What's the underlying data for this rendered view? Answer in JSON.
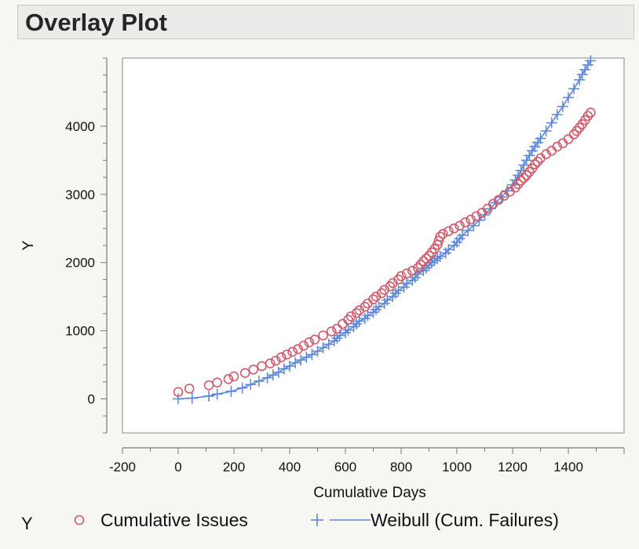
{
  "panel": {
    "title": "Overlay Plot"
  },
  "chart_data": {
    "type": "scatter",
    "xlabel": "Cumulative Days",
    "ylabel": "Y",
    "xlim": [
      -200,
      1600
    ],
    "ylim": [
      -500,
      5000
    ],
    "x_ticks": [
      -200,
      0,
      200,
      400,
      600,
      800,
      1000,
      1200,
      1400
    ],
    "y_ticks": [
      0,
      1000,
      2000,
      3000,
      4000
    ],
    "grid": false,
    "legend_placement": "bottom",
    "legend_title": "Y",
    "series": [
      {
        "name": "Cumulative Issues",
        "marker": "circle",
        "color": "#d05a6a",
        "points": [
          [
            0,
            100
          ],
          [
            40,
            150
          ],
          [
            110,
            200
          ],
          [
            140,
            240
          ],
          [
            180,
            290
          ],
          [
            200,
            330
          ],
          [
            240,
            380
          ],
          [
            270,
            430
          ],
          [
            300,
            480
          ],
          [
            330,
            520
          ],
          [
            350,
            560
          ],
          [
            370,
            610
          ],
          [
            390,
            650
          ],
          [
            410,
            690
          ],
          [
            430,
            730
          ],
          [
            450,
            780
          ],
          [
            470,
            830
          ],
          [
            490,
            870
          ],
          [
            520,
            930
          ],
          [
            550,
            990
          ],
          [
            570,
            1030
          ],
          [
            590,
            1100
          ],
          [
            610,
            1160
          ],
          [
            620,
            1210
          ],
          [
            640,
            1260
          ],
          [
            650,
            1300
          ],
          [
            670,
            1350
          ],
          [
            680,
            1400
          ],
          [
            700,
            1460
          ],
          [
            710,
            1500
          ],
          [
            730,
            1550
          ],
          [
            740,
            1600
          ],
          [
            760,
            1650
          ],
          [
            770,
            1700
          ],
          [
            790,
            1750
          ],
          [
            800,
            1800
          ],
          [
            820,
            1840
          ],
          [
            840,
            1880
          ],
          [
            860,
            1920
          ],
          [
            870,
            1970
          ],
          [
            880,
            2020
          ],
          [
            890,
            2060
          ],
          [
            900,
            2100
          ],
          [
            910,
            2150
          ],
          [
            920,
            2200
          ],
          [
            930,
            2260
          ],
          [
            935,
            2320
          ],
          [
            940,
            2380
          ],
          [
            950,
            2420
          ],
          [
            970,
            2460
          ],
          [
            990,
            2500
          ],
          [
            1010,
            2540
          ],
          [
            1030,
            2590
          ],
          [
            1050,
            2630
          ],
          [
            1070,
            2680
          ],
          [
            1090,
            2730
          ],
          [
            1110,
            2790
          ],
          [
            1130,
            2860
          ],
          [
            1150,
            2920
          ],
          [
            1170,
            2980
          ],
          [
            1190,
            3040
          ],
          [
            1210,
            3100
          ],
          [
            1220,
            3150
          ],
          [
            1230,
            3200
          ],
          [
            1240,
            3240
          ],
          [
            1250,
            3280
          ],
          [
            1260,
            3330
          ],
          [
            1270,
            3380
          ],
          [
            1280,
            3440
          ],
          [
            1290,
            3480
          ],
          [
            1300,
            3530
          ],
          [
            1320,
            3590
          ],
          [
            1340,
            3640
          ],
          [
            1360,
            3700
          ],
          [
            1380,
            3750
          ],
          [
            1400,
            3810
          ],
          [
            1420,
            3880
          ],
          [
            1430,
            3930
          ],
          [
            1440,
            3980
          ],
          [
            1450,
            4030
          ],
          [
            1460,
            4090
          ],
          [
            1470,
            4150
          ],
          [
            1480,
            4200
          ]
        ]
      },
      {
        "name": "Weibull (Cum. Failures)",
        "marker": "plus",
        "line": true,
        "color": "#5a86d6",
        "points": [
          [
            0,
            0
          ],
          [
            50,
            10
          ],
          [
            110,
            40
          ],
          [
            140,
            70
          ],
          [
            190,
            110
          ],
          [
            230,
            160
          ],
          [
            260,
            210
          ],
          [
            290,
            260
          ],
          [
            320,
            310
          ],
          [
            340,
            350
          ],
          [
            360,
            390
          ],
          [
            380,
            440
          ],
          [
            400,
            480
          ],
          [
            420,
            530
          ],
          [
            440,
            570
          ],
          [
            460,
            610
          ],
          [
            480,
            650
          ],
          [
            500,
            700
          ],
          [
            520,
            750
          ],
          [
            540,
            800
          ],
          [
            560,
            850
          ],
          [
            570,
            890
          ],
          [
            580,
            930
          ],
          [
            600,
            970
          ],
          [
            610,
            1010
          ],
          [
            630,
            1060
          ],
          [
            640,
            1100
          ],
          [
            650,
            1140
          ],
          [
            670,
            1180
          ],
          [
            680,
            1220
          ],
          [
            700,
            1270
          ],
          [
            710,
            1310
          ],
          [
            720,
            1350
          ],
          [
            740,
            1400
          ],
          [
            750,
            1450
          ],
          [
            770,
            1500
          ],
          [
            780,
            1550
          ],
          [
            790,
            1590
          ],
          [
            810,
            1640
          ],
          [
            820,
            1690
          ],
          [
            840,
            1740
          ],
          [
            850,
            1780
          ],
          [
            860,
            1830
          ],
          [
            880,
            1880
          ],
          [
            890,
            1920
          ],
          [
            900,
            1960
          ],
          [
            910,
            2000
          ],
          [
            920,
            2030
          ],
          [
            930,
            2060
          ],
          [
            940,
            2090
          ],
          [
            960,
            2140
          ],
          [
            970,
            2190
          ],
          [
            990,
            2250
          ],
          [
            1000,
            2300
          ],
          [
            1010,
            2350
          ],
          [
            1020,
            2400
          ],
          [
            1040,
            2470
          ],
          [
            1060,
            2540
          ],
          [
            1080,
            2620
          ],
          [
            1100,
            2700
          ],
          [
            1120,
            2790
          ],
          [
            1140,
            2880
          ],
          [
            1160,
            2960
          ],
          [
            1180,
            3050
          ],
          [
            1200,
            3140
          ],
          [
            1210,
            3210
          ],
          [
            1220,
            3280
          ],
          [
            1230,
            3350
          ],
          [
            1240,
            3430
          ],
          [
            1250,
            3500
          ],
          [
            1260,
            3570
          ],
          [
            1270,
            3640
          ],
          [
            1280,
            3700
          ],
          [
            1290,
            3760
          ],
          [
            1300,
            3820
          ],
          [
            1320,
            3930
          ],
          [
            1340,
            4050
          ],
          [
            1360,
            4170
          ],
          [
            1380,
            4290
          ],
          [
            1400,
            4420
          ],
          [
            1420,
            4550
          ],
          [
            1440,
            4680
          ],
          [
            1450,
            4760
          ],
          [
            1460,
            4830
          ],
          [
            1470,
            4900
          ],
          [
            1480,
            4960
          ]
        ]
      }
    ]
  }
}
